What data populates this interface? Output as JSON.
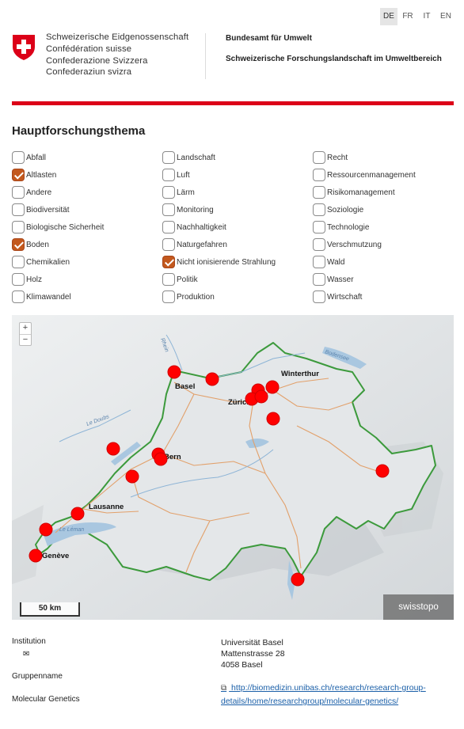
{
  "languages": [
    {
      "code": "DE",
      "active": true
    },
    {
      "code": "FR",
      "active": false
    },
    {
      "code": "IT",
      "active": false
    },
    {
      "code": "EN",
      "active": false
    }
  ],
  "header": {
    "confederation": [
      "Schweizerische Eidgenossenschaft",
      "Confédération suisse",
      "Confederazione Svizzera",
      "Confederaziun svizra"
    ],
    "office": "Bundesamt für Umwelt",
    "subtitle": "Schweizerische Forschungslandschaft im Umweltbereich"
  },
  "colors": {
    "brand_red": "#dc0018",
    "checkbox_checked": "#c3581d",
    "marker_red": "#ff0000",
    "border_green": "#3c9a3c"
  },
  "section_title": "Hauptforschungsthema",
  "topics": [
    [
      {
        "label": "Abfall",
        "checked": false
      },
      {
        "label": "Altlasten",
        "checked": true
      },
      {
        "label": "Andere",
        "checked": false
      },
      {
        "label": "Biodiversität",
        "checked": false
      },
      {
        "label": "Biologische Sicherheit",
        "checked": false
      },
      {
        "label": "Boden",
        "checked": true
      },
      {
        "label": "Chemikalien",
        "checked": false
      },
      {
        "label": "Holz",
        "checked": false
      },
      {
        "label": "Klimawandel",
        "checked": false
      }
    ],
    [
      {
        "label": "Landschaft",
        "checked": false
      },
      {
        "label": "Luft",
        "checked": false
      },
      {
        "label": "Lärm",
        "checked": false
      },
      {
        "label": "Monitoring",
        "checked": false
      },
      {
        "label": "Nachhaltigkeit",
        "checked": false
      },
      {
        "label": "Naturgefahren",
        "checked": false
      },
      {
        "label": "Nicht ionisierende Strahlung",
        "checked": true
      },
      {
        "label": "Politik",
        "checked": false
      },
      {
        "label": "Produktion",
        "checked": false
      }
    ],
    [
      {
        "label": "Recht",
        "checked": false
      },
      {
        "label": "Ressourcenmanagement",
        "checked": false
      },
      {
        "label": "Risikomanagement",
        "checked": false
      },
      {
        "label": "Soziologie",
        "checked": false
      },
      {
        "label": "Technologie",
        "checked": false
      },
      {
        "label": "Verschmutzung",
        "checked": false
      },
      {
        "label": "Wald",
        "checked": false
      },
      {
        "label": "Wasser",
        "checked": false
      },
      {
        "label": "Wirtschaft",
        "checked": false
      }
    ]
  ],
  "map": {
    "zoom_in": "+",
    "zoom_out": "−",
    "scale_label": "50 km",
    "attribution": "swisstopo",
    "cities": [
      "Basel",
      "Winterthur",
      "Zürich",
      "Bern",
      "Lausanne",
      "Genève"
    ],
    "water_labels": [
      "Le Léman",
      "Bodensee",
      "Rhein",
      "Le Doubs"
    ]
  },
  "details": {
    "institution_label": "Institution",
    "envelope_icon": "envelope-icon",
    "group_label": "Gruppenname",
    "group_value": "Molecular Genetics",
    "address": [
      "Universität Basel",
      "Mattenstrasse 28",
      "4058 Basel"
    ],
    "link_icon": "external-link-icon",
    "link_text": " http://biomedizin.unibas.ch/research/research-group-details/home/researchgroup/molecular-genetics/"
  }
}
